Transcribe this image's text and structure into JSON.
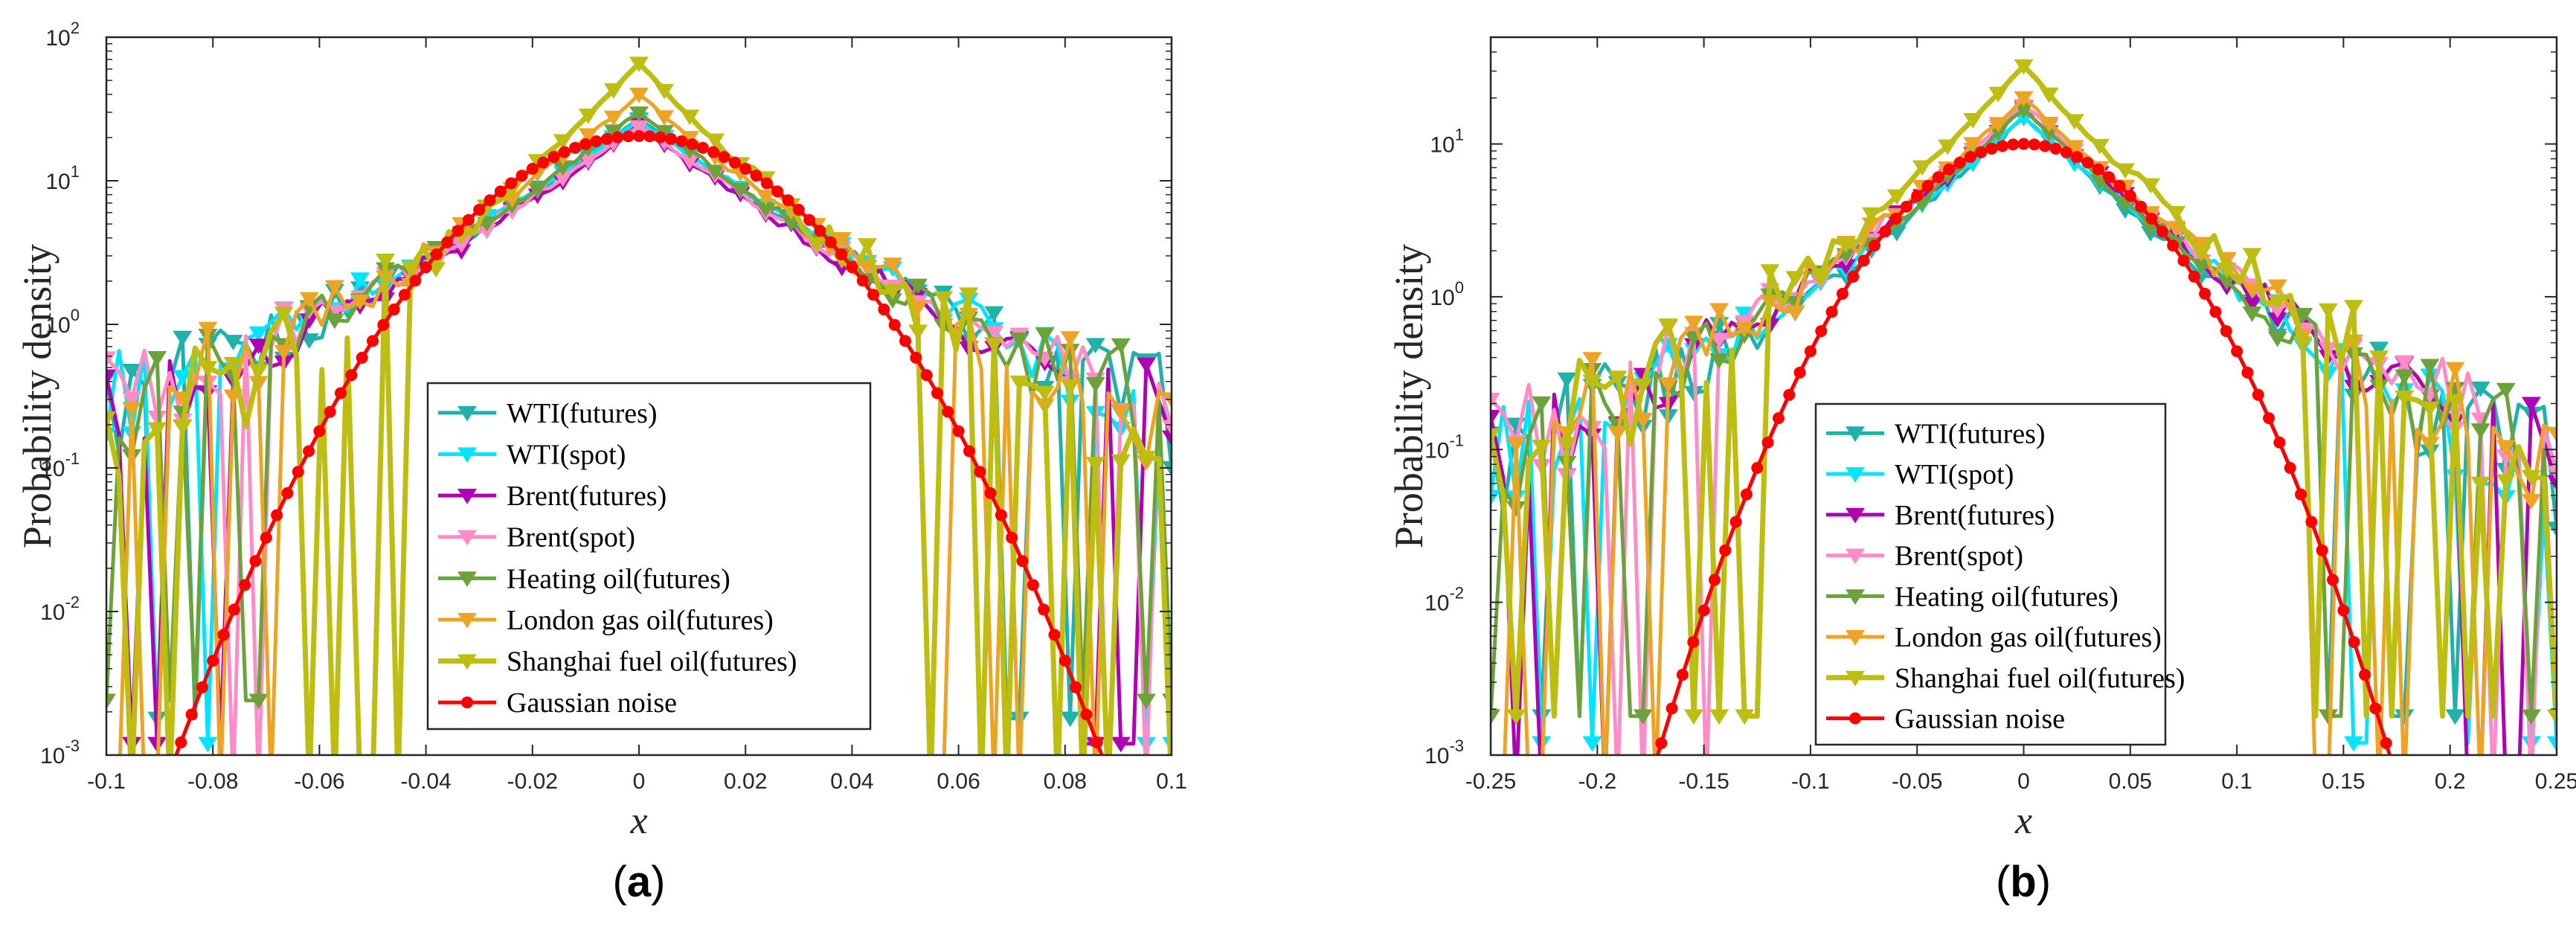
{
  "chart_data": [
    {
      "type": "line",
      "panel": "a",
      "caption": {
        "open": "(",
        "letter": "a",
        "close": ")"
      },
      "xlabel": "x",
      "ylabel": "Probability density",
      "yscale": "log",
      "xlim": [
        -0.1,
        0.1
      ],
      "ylim": [
        0.001,
        100
      ],
      "xticks": [
        -0.1,
        -0.08,
        -0.06,
        -0.04,
        -0.02,
        0,
        0.02,
        0.04,
        0.06,
        0.08,
        0.1
      ],
      "xtick_labels": [
        "-0.1",
        "-0.08",
        "-0.06",
        "-0.04",
        "-0.02",
        "0",
        "0.02",
        "0.04",
        "0.06",
        "0.08",
        "0.1"
      ],
      "yticks": [
        {
          "value": 0.001,
          "base": "10",
          "exp": "-3"
        },
        {
          "value": 0.01,
          "base": "10",
          "exp": "-2"
        },
        {
          "value": 0.1,
          "base": "10",
          "exp": "-1"
        },
        {
          "value": 1,
          "base": "10",
          "exp": "0"
        },
        {
          "value": 10,
          "base": "10",
          "exp": "1"
        },
        {
          "value": 100,
          "base": "10",
          "exp": "2"
        }
      ],
      "legend_position": "bottom-center",
      "series": [
        {
          "name": "WTI(futures)",
          "color": "#20B2AA",
          "marker": "triangle-down",
          "sigma": 0.02,
          "peak": 27,
          "tail": 0.12,
          "ymin": 0.003
        },
        {
          "name": "WTI(spot)",
          "color": "#00E5FF",
          "marker": "triangle-down",
          "sigma": 0.021,
          "peak": 26,
          "tail": 0.11,
          "ymin": 0.002
        },
        {
          "name": "Brent(futures)",
          "color": "#B000B5",
          "marker": "triangle-down",
          "sigma": 0.02,
          "peak": 24,
          "tail": 0.1,
          "ymin": 0.002
        },
        {
          "name": "Brent(spot)",
          "color": "#FF8CC6",
          "marker": "triangle-down",
          "sigma": 0.021,
          "peak": 24,
          "tail": 0.1,
          "ymin": 0.001
        },
        {
          "name": "Heating oil(futures)",
          "color": "#6BA33A",
          "marker": "triangle-down",
          "sigma": 0.019,
          "peak": 30,
          "tail": 0.09,
          "ymin": 0.004
        },
        {
          "name": "London gas oil(futures)",
          "color": "#EDA323",
          "marker": "triangle-down",
          "sigma": 0.017,
          "peak": 40,
          "tail": 0.08,
          "ymin": 0.001
        },
        {
          "name": "Shanghai fuel oil(futures)",
          "color": "#BDBD12",
          "marker": "triangle-down",
          "sigma": 0.014,
          "peak": 65,
          "tail": 0.07,
          "ymin": 0.001
        },
        {
          "name": "Gaussian noise",
          "color": "#FF0000",
          "marker": "circle",
          "gaussian": true,
          "sigma": 0.0195,
          "peak": 20.5
        }
      ]
    },
    {
      "type": "line",
      "panel": "b",
      "caption": {
        "open": "(",
        "letter": "b",
        "close": ")"
      },
      "xlabel": "x",
      "ylabel": "Probability density",
      "yscale": "log",
      "xlim": [
        -0.25,
        0.25
      ],
      "ylim": [
        0.001,
        50
      ],
      "xticks": [
        -0.25,
        -0.2,
        -0.15,
        -0.1,
        -0.05,
        0,
        0.05,
        0.1,
        0.15,
        0.2,
        0.25
      ],
      "xtick_labels": [
        "-0.25",
        "-0.2",
        "-0.15",
        "-0.1",
        "-0.05",
        "0",
        "0.05",
        "0.1",
        "0.15",
        "0.2",
        "0.25"
      ],
      "yticks": [
        {
          "value": 0.001,
          "base": "10",
          "exp": "-3"
        },
        {
          "value": 0.01,
          "base": "10",
          "exp": "-2"
        },
        {
          "value": 0.1,
          "base": "10",
          "exp": "-1"
        },
        {
          "value": 1,
          "base": "10",
          "exp": "0"
        },
        {
          "value": 10,
          "base": "10",
          "exp": "1"
        }
      ],
      "legend_position": "bottom-center",
      "series": [
        {
          "name": "WTI(futures)",
          "color": "#20B2AA",
          "marker": "triangle-down",
          "sigma": 0.042,
          "peak": 15,
          "tail": 0.06,
          "ymin": 0.003
        },
        {
          "name": "WTI(spot)",
          "color": "#00E5FF",
          "marker": "triangle-down",
          "sigma": 0.043,
          "peak": 15,
          "tail": 0.05,
          "ymin": 0.002
        },
        {
          "name": "Brent(futures)",
          "color": "#B000B5",
          "marker": "triangle-down",
          "sigma": 0.042,
          "peak": 17,
          "tail": 0.05,
          "ymin": 0.001
        },
        {
          "name": "Brent(spot)",
          "color": "#FF8CC6",
          "marker": "triangle-down",
          "sigma": 0.043,
          "peak": 18,
          "tail": 0.05,
          "ymin": 0.001
        },
        {
          "name": "Heating oil(futures)",
          "color": "#6BA33A",
          "marker": "triangle-down",
          "sigma": 0.041,
          "peak": 17,
          "tail": 0.05,
          "ymin": 0.003
        },
        {
          "name": "London gas oil(futures)",
          "color": "#EDA323",
          "marker": "triangle-down",
          "sigma": 0.04,
          "peak": 20,
          "tail": 0.06,
          "ymin": 0.001
        },
        {
          "name": "Shanghai fuel oil(futures)",
          "color": "#BDBD12",
          "marker": "triangle-down",
          "sigma": 0.036,
          "peak": 32,
          "tail": 0.06,
          "ymin": 0.003
        },
        {
          "name": "Gaussian noise",
          "color": "#FF0000",
          "marker": "circle",
          "gaussian": true,
          "sigma": 0.04,
          "peak": 10
        }
      ]
    }
  ]
}
